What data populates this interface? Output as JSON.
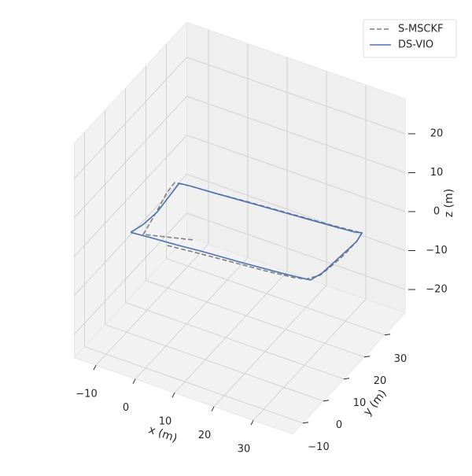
{
  "chart_data": {
    "type": "line3d",
    "xlabel": "x (m)",
    "ylabel": "y (m)",
    "zlabel": "z (m)",
    "xlim": [
      -15.5,
      40
    ],
    "ylim": [
      -15,
      40
    ],
    "zlim": [
      -26,
      29
    ],
    "xticks": [
      {
        "value": -10,
        "label": "−10"
      },
      0,
      10,
      20,
      30
    ],
    "yticks": [
      {
        "value": -10,
        "label": "−10"
      },
      0,
      10,
      20,
      30
    ],
    "zticks": [
      {
        "value": -20,
        "label": "−20"
      },
      {
        "value": -10,
        "label": "−10"
      },
      0,
      10,
      20
    ],
    "grid": true,
    "legend": "upper right",
    "series": [
      {
        "name": "S-MSCKF",
        "color": "#7f7f7f",
        "dash": "dashed",
        "x": [
          0.4,
          8,
          16,
          24,
          30,
          33,
          35,
          35.5,
          36,
          36,
          35.5,
          28,
          18,
          8,
          0,
          -6,
          -9.4,
          -9.1,
          -8,
          -7,
          -6.2,
          4.6
        ],
        "y": [
          -0.1,
          1,
          2,
          3,
          4,
          5,
          8,
          12,
          18,
          24,
          27.5,
          26.5,
          25.5,
          24.5,
          23.5,
          23,
          22.3,
          17.9,
          12,
          6,
          0.8,
          5.0
        ],
        "z": [
          0,
          0,
          0,
          0,
          0,
          0,
          0,
          0,
          0,
          0,
          0,
          0,
          0,
          0,
          0,
          0,
          0,
          0,
          0,
          0,
          0,
          0
        ]
      },
      {
        "name": "DS-VIO",
        "color": "#4c72b0",
        "dash": "solid",
        "x": [
          -9,
          -8,
          -7.5,
          -8,
          -8.4,
          -6,
          0,
          10,
          20,
          30,
          34,
          35.5,
          36,
          35.5,
          35,
          34,
          28,
          18,
          8,
          2.7,
          0,
          -5,
          -9
        ],
        "y": [
          0,
          4,
          10,
          17,
          22.6,
          23,
          23.5,
          24.5,
          25.5,
          26.5,
          27,
          27.6,
          24,
          16,
          9,
          5.2,
          4.2,
          3,
          2,
          1.3,
          1,
          0.5,
          0
        ],
        "z": [
          0,
          0,
          0,
          0,
          0,
          0,
          0,
          0,
          0,
          0,
          0,
          0,
          0,
          0,
          0,
          0,
          0,
          0,
          0,
          0,
          0,
          0,
          0
        ]
      }
    ]
  }
}
